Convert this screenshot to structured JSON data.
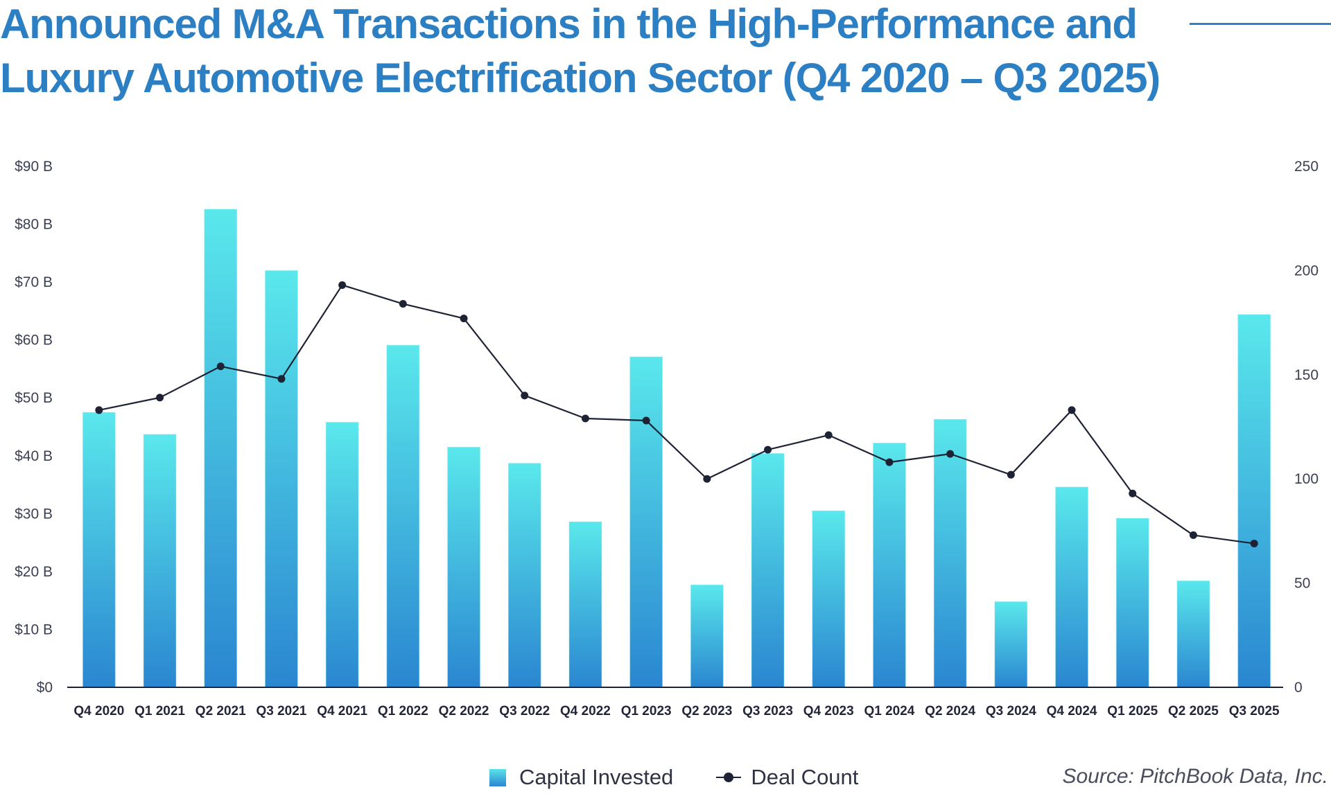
{
  "header": {
    "title_line1": "Announced M&A Transactions in the High-Performance and",
    "title_line2": "Luxury Automotive Electrification Sector (Q4 2020 – Q3 2025)"
  },
  "colors": {
    "title": "#2b7fc2",
    "bar_top": "#5ae8ec",
    "bar_bottom": "#2a86d0",
    "line": "#1e2235",
    "axis": "#1e2235",
    "tick_text": "#3b3f52"
  },
  "legend": {
    "bar_label": "Capital Invested",
    "line_label": "Deal Count",
    "placement": "bottom-center"
  },
  "source": "Source: PitchBook Data, Inc.",
  "chart_data": {
    "type": "bar",
    "title": "Announced M&A Transactions in the High-Performance and Luxury Automotive Electrification Sector (Q4 2020 – Q3 2025)",
    "xlabel": "",
    "ylabel": "",
    "y2label": "",
    "grid": false,
    "categories": [
      "Q4 2020",
      "Q1 2021",
      "Q2 2021",
      "Q3 2021",
      "Q4 2021",
      "Q1 2022",
      "Q2 2022",
      "Q3 2022",
      "Q4 2022",
      "Q1 2023",
      "Q2 2023",
      "Q3 2023",
      "Q4 2023",
      "Q1 2024",
      "Q2 2024",
      "Q3 2024",
      "Q4 2024",
      "Q1 2025",
      "Q2 2025",
      "Q3 2025"
    ],
    "series": [
      {
        "name": "Capital Invested",
        "type": "bar",
        "axis": "left",
        "unit": "$B",
        "values": [
          47.5,
          43.7,
          82.6,
          72.0,
          45.8,
          59.1,
          41.5,
          38.7,
          28.6,
          57.1,
          17.7,
          40.4,
          30.5,
          42.2,
          46.3,
          14.8,
          34.6,
          29.2,
          18.4,
          64.4
        ]
      },
      {
        "name": "Deal Count",
        "type": "line",
        "axis": "right",
        "values": [
          133,
          139,
          154,
          148,
          193,
          184,
          177,
          140,
          129,
          128,
          100,
          114,
          121,
          108,
          112,
          102,
          133,
          93,
          73,
          69
        ]
      }
    ],
    "ylim": [
      0,
      90
    ],
    "y2lim": [
      0,
      250
    ],
    "y_ticks": [
      {
        "value": 0,
        "label": "$0"
      },
      {
        "value": 10,
        "label": "$10 B"
      },
      {
        "value": 20,
        "label": "$20 B"
      },
      {
        "value": 30,
        "label": "$30 B"
      },
      {
        "value": 40,
        "label": "$40 B"
      },
      {
        "value": 50,
        "label": "$50 B"
      },
      {
        "value": 60,
        "label": "$60 B"
      },
      {
        "value": 70,
        "label": "$70 B"
      },
      {
        "value": 80,
        "label": "$80 B"
      },
      {
        "value": 90,
        "label": "$90 B"
      }
    ],
    "y2_ticks": [
      {
        "value": 0,
        "label": "0"
      },
      {
        "value": 50,
        "label": "50"
      },
      {
        "value": 100,
        "label": "100"
      },
      {
        "value": 150,
        "label": "150"
      },
      {
        "value": 200,
        "label": "200"
      },
      {
        "value": 250,
        "label": "250"
      }
    ]
  }
}
